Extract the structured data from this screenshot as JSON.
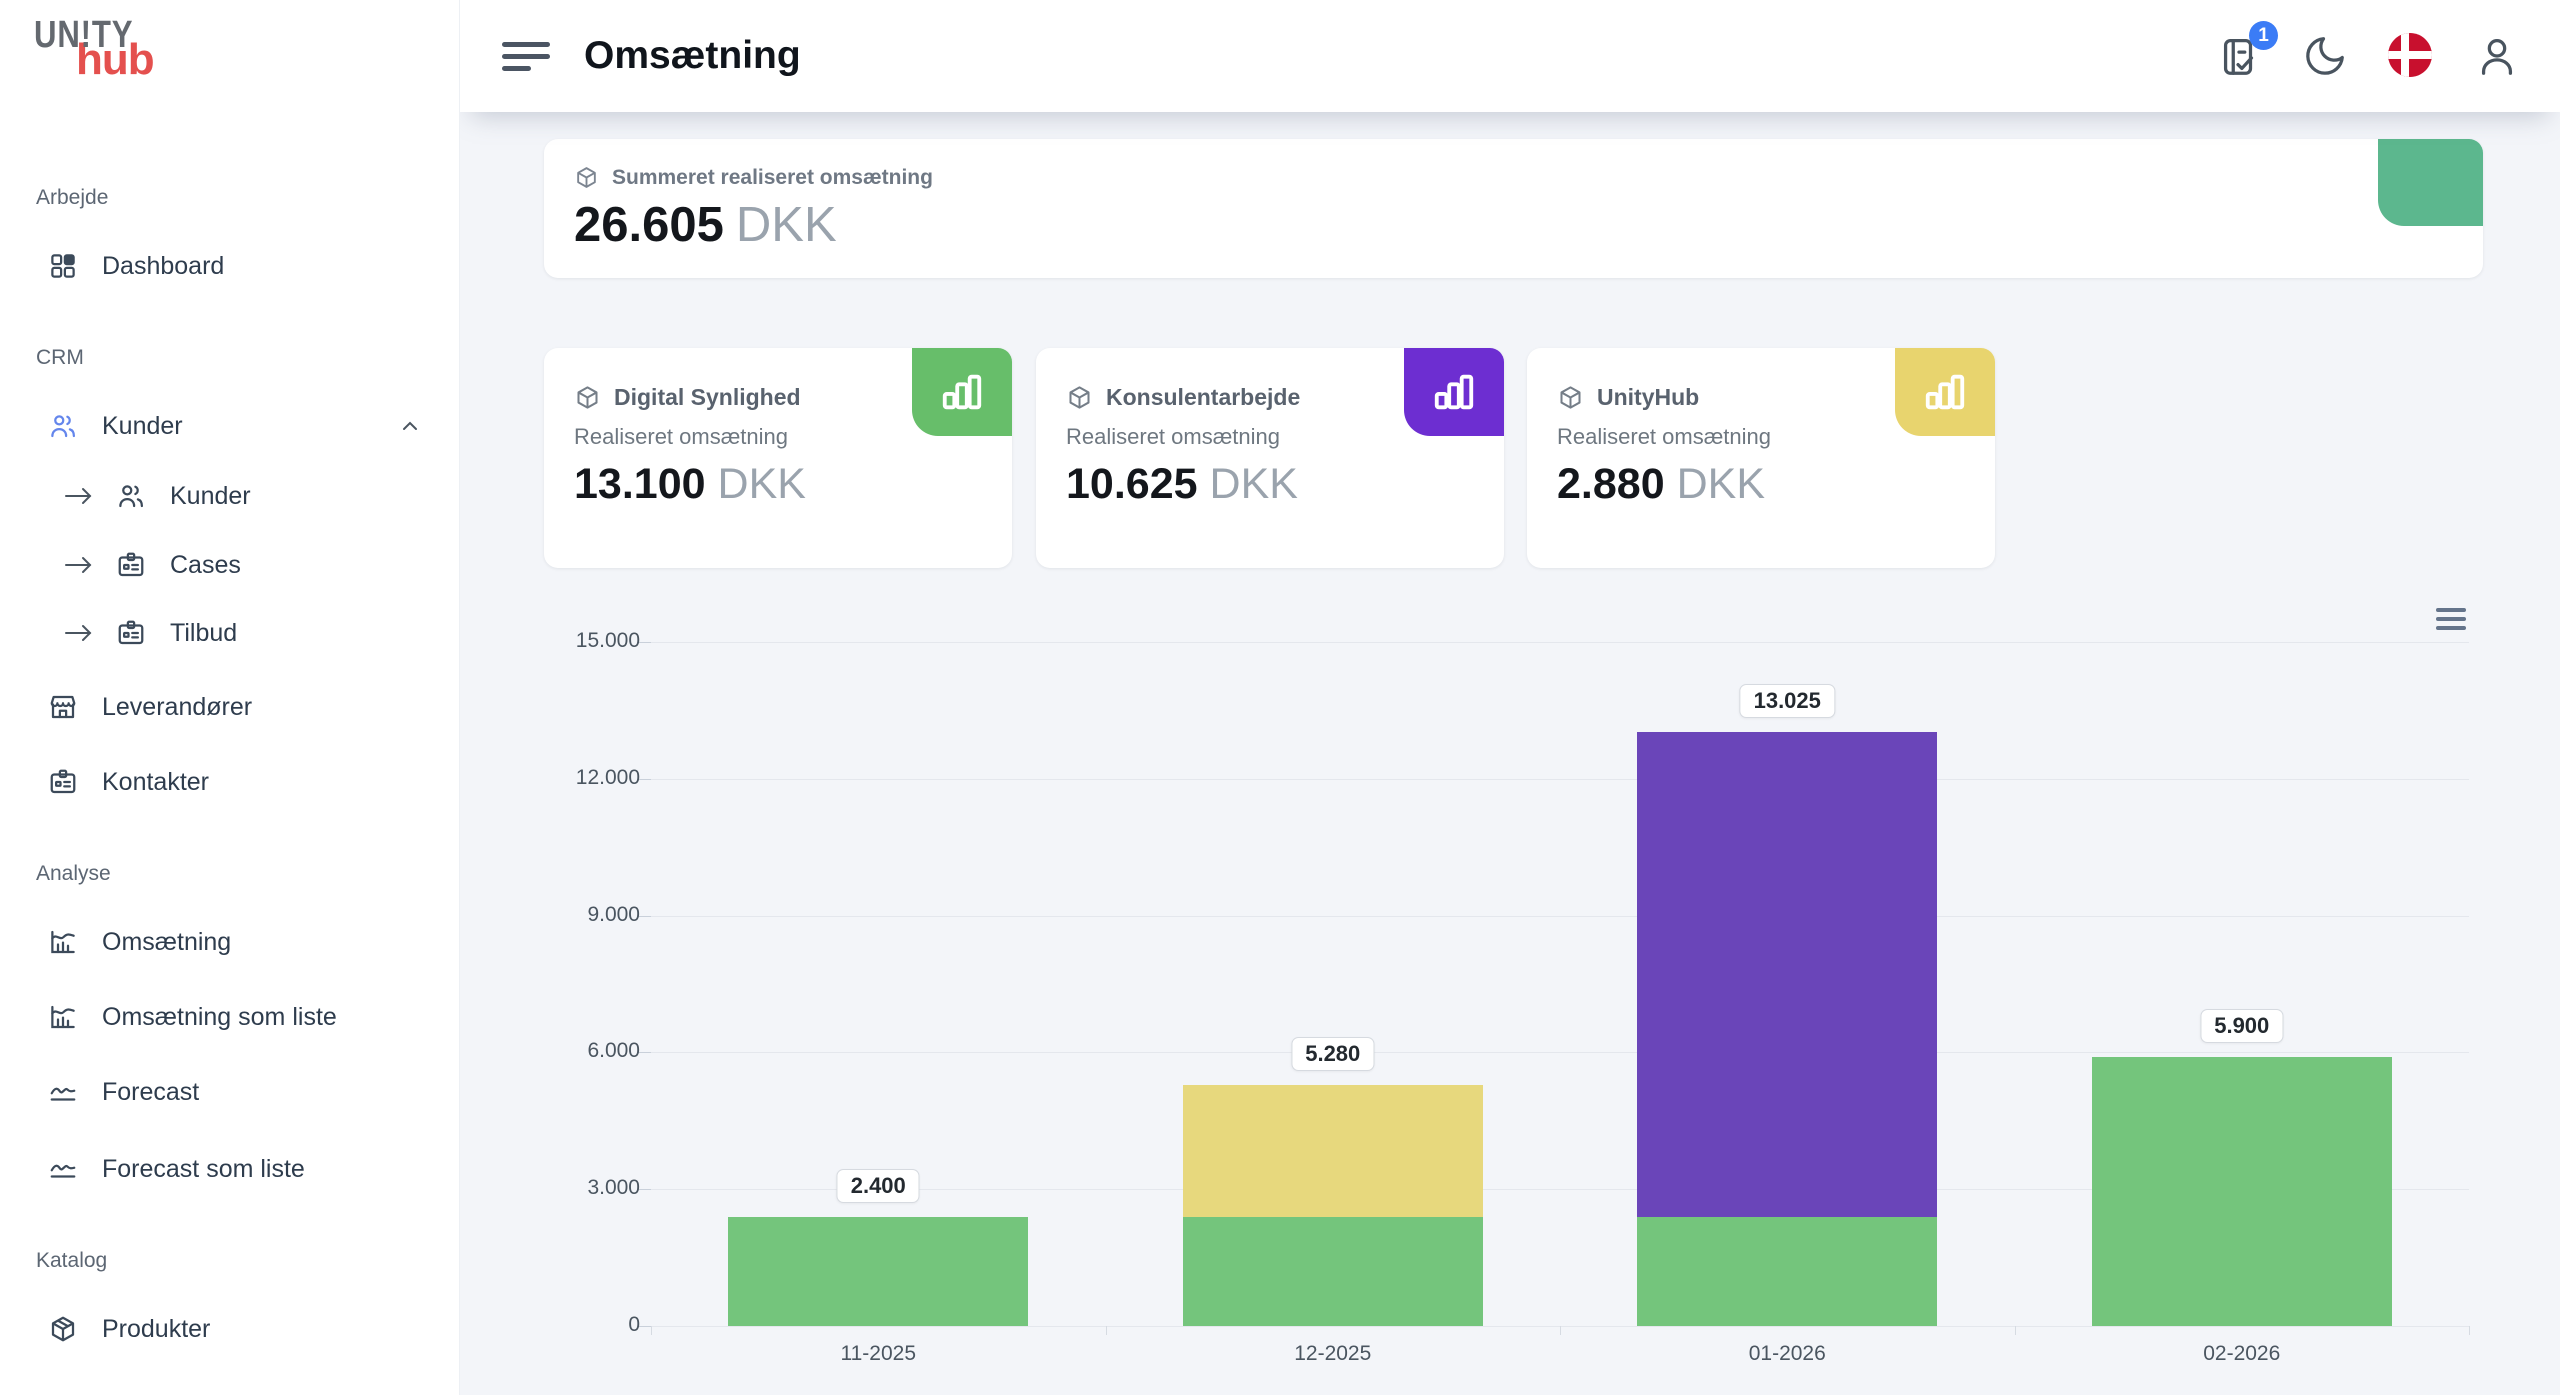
{
  "brand": {
    "top": "UN!TY",
    "bottom": "hub"
  },
  "header": {
    "title": "Omsætning",
    "notification_count": "1"
  },
  "sidebar": {
    "sections": [
      {
        "label": "Arbejde",
        "items": [
          {
            "label": "Dashboard"
          }
        ]
      },
      {
        "label": "CRM",
        "items": [
          {
            "label": "Kunder",
            "expanded": true,
            "children": [
              {
                "label": "Kunder"
              },
              {
                "label": "Cases"
              },
              {
                "label": "Tilbud"
              }
            ]
          },
          {
            "label": "Leverandører"
          },
          {
            "label": "Kontakter"
          }
        ]
      },
      {
        "label": "Analyse",
        "items": [
          {
            "label": "Omsætning"
          },
          {
            "label": "Omsætning som liste"
          },
          {
            "label": "Forecast"
          },
          {
            "label": "Forecast som liste"
          }
        ]
      },
      {
        "label": "Katalog",
        "items": [
          {
            "label": "Produkter"
          }
        ]
      }
    ]
  },
  "summary": {
    "label": "Summeret realiseret omsætning",
    "value": "26.605",
    "currency": "DKK",
    "accent_color": "#5cb78e"
  },
  "cards": [
    {
      "title": "Digital Synlighed",
      "subtitle": "Realiseret omsætning",
      "value": "13.100",
      "currency": "DKK",
      "accent_color": "#67be6a"
    },
    {
      "title": "Konsulentarbejde",
      "subtitle": "Realiseret omsætning",
      "value": "10.625",
      "currency": "DKK",
      "accent_color": "#6d2ed1"
    },
    {
      "title": "UnityHub",
      "subtitle": "Realiseret omsætning",
      "value": "2.880",
      "currency": "DKK",
      "accent_color": "#e8d46e"
    }
  ],
  "chart_data": {
    "type": "bar",
    "stacked": true,
    "categories": [
      "11-2025",
      "12-2025",
      "01-2026",
      "02-2026"
    ],
    "series": [
      {
        "name": "Digital Synlighed",
        "color": "#74c57c",
        "values": [
          2400,
          2400,
          2400,
          5900
        ]
      },
      {
        "name": "Konsulentarbejde",
        "color": "#6a45b9",
        "values": [
          0,
          0,
          10625,
          0
        ]
      },
      {
        "name": "UnityHub",
        "color": "#e7d87d",
        "values": [
          0,
          2880,
          0,
          0
        ]
      }
    ],
    "totals": [
      "2.400",
      "5.280",
      "13.025",
      "5.900"
    ],
    "total_values": [
      2400,
      5280,
      13025,
      5900
    ],
    "y_ticks": [
      "15.000",
      "12.000",
      "9.000",
      "6.000",
      "3.000",
      "0"
    ],
    "ylim": [
      0,
      15000
    ],
    "grid": true,
    "legend": "none"
  }
}
